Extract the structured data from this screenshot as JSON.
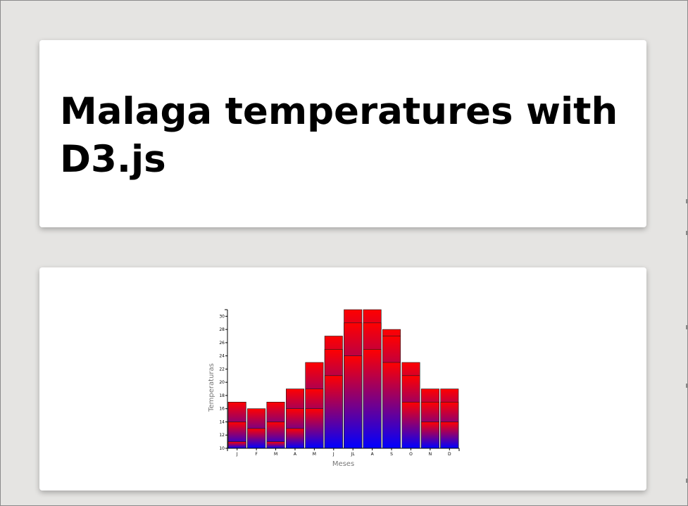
{
  "header": {
    "title": "Malaga temperatures with D3.js"
  },
  "colors": {
    "background": "#e5e4e2",
    "card": "#ffffff",
    "bar_low": "#0000ff",
    "bar_high": "#ff0000"
  },
  "chart_data": {
    "type": "bar",
    "title": "",
    "xlabel": "Meses",
    "ylabel": "Temperaturas",
    "categories": [
      "J",
      "F",
      "M",
      "A",
      "M",
      "J",
      "JL",
      "A",
      "S",
      "O",
      "N",
      "D"
    ],
    "series": [
      {
        "values": [
          11,
          10,
          11,
          13,
          16,
          21,
          24,
          25,
          23,
          17,
          14,
          14
        ]
      },
      {
        "values": [
          14,
          13,
          14,
          16,
          19,
          25,
          29,
          29,
          27,
          21,
          17,
          17
        ]
      },
      {
        "values": [
          17,
          16,
          17,
          19,
          23,
          27,
          31,
          31,
          28,
          23,
          19,
          19
        ]
      }
    ],
    "ylim": [
      10,
      31
    ],
    "yticks": [
      "10",
      "12",
      "14",
      "16",
      "18",
      "20",
      "22",
      "24",
      "26",
      "28",
      "30"
    ],
    "grid": false,
    "legend": "none"
  }
}
